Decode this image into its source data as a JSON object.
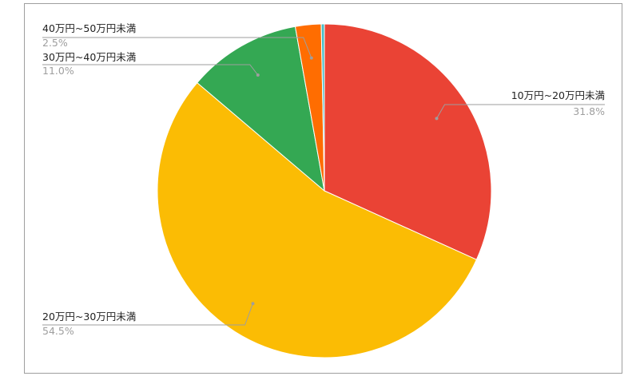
{
  "chart_data": {
    "type": "pie",
    "title": "",
    "slices": [
      {
        "label": "10万円~20万円未満",
        "value": 31.8,
        "pct_label": "31.8%",
        "color": "#ea4335"
      },
      {
        "label": "20万円~30万円未満",
        "value": 54.5,
        "pct_label": "54.5%",
        "color": "#fbbc04"
      },
      {
        "label": "30万円~40万円未満",
        "value": 11.0,
        "pct_label": "11.0%",
        "color": "#34a853"
      },
      {
        "label": "40万円~50万円未満",
        "value": 2.5,
        "pct_label": "2.5%",
        "color": "#ff6d01"
      },
      {
        "label": "",
        "value": 0.3,
        "pct_label": "",
        "color": "#46bdc6"
      }
    ],
    "start_angle": "top",
    "direction": "clockwise",
    "legend": "none",
    "label_style": "leader-lines"
  },
  "colors": {
    "leader_line": "#9e9e9e",
    "frame_border": "#9e9e9e",
    "slice_border": "#ffffff"
  }
}
